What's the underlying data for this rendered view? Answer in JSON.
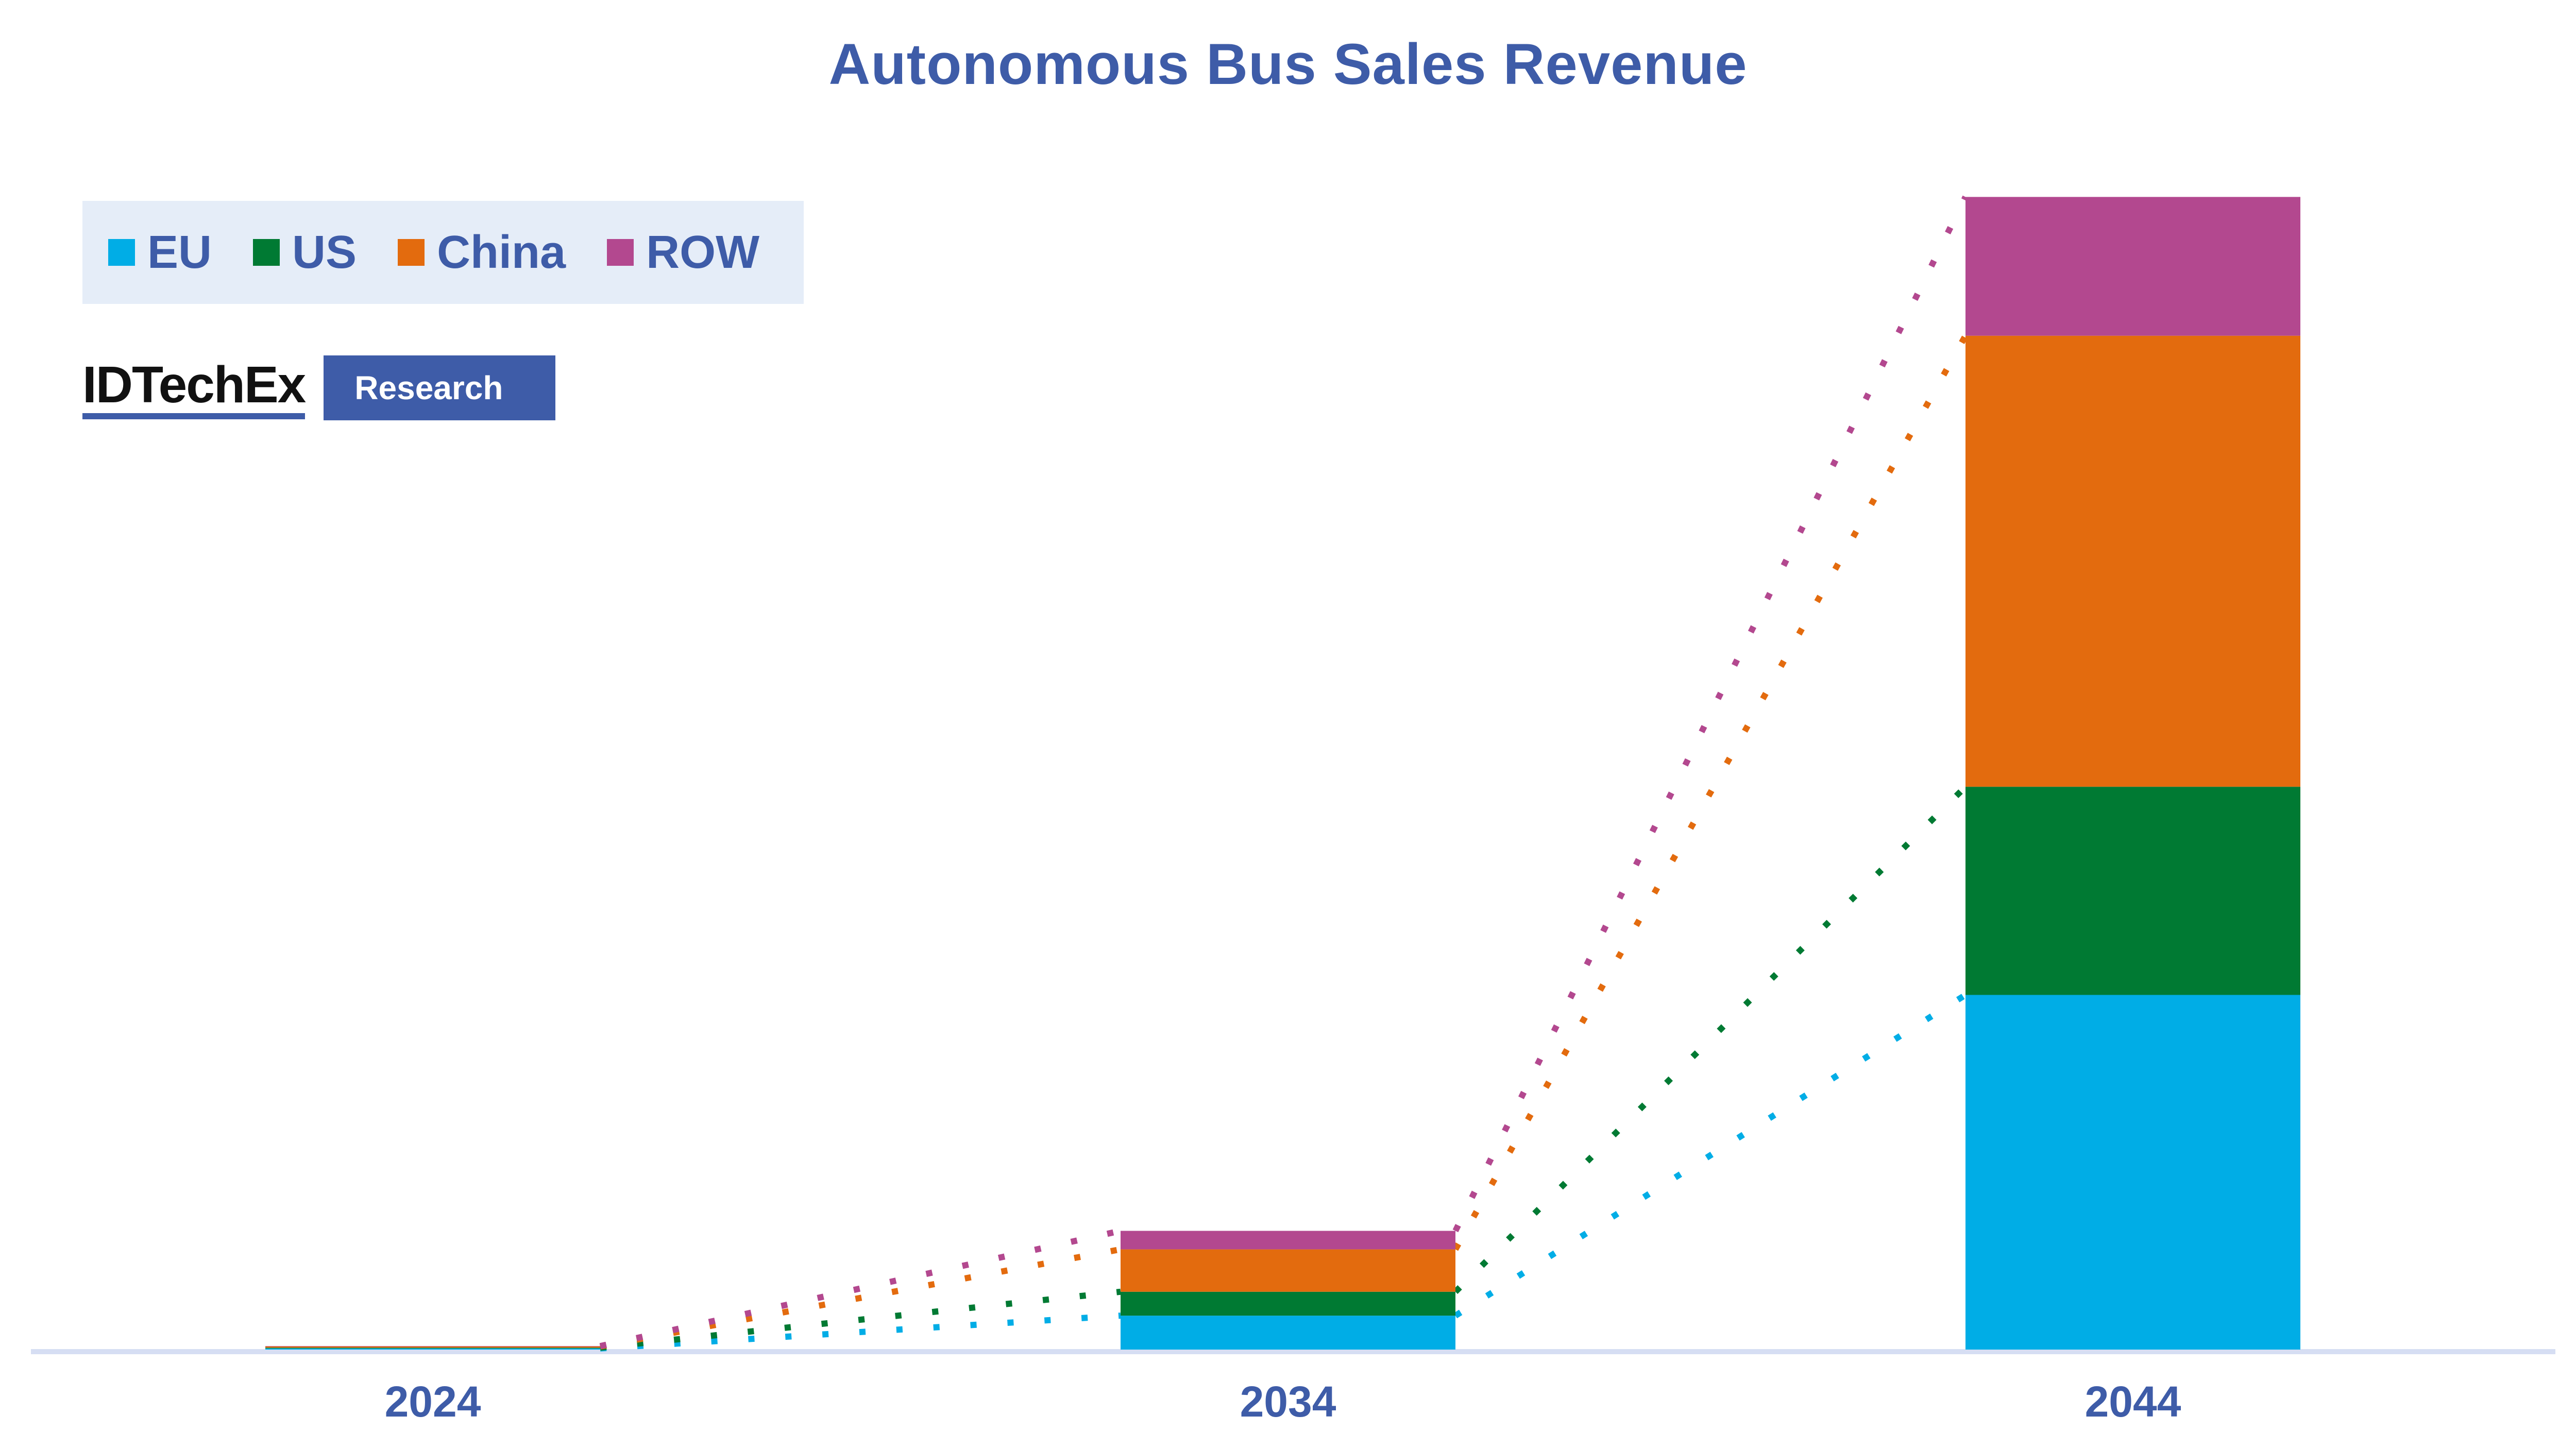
{
  "chart_data": {
    "type": "bar",
    "stacked": true,
    "title": "Autonomous Bus Sales Revenue",
    "xlabel": "",
    "ylabel": "",
    "categories": [
      "2024",
      "2034",
      "2044"
    ],
    "series": [
      {
        "name": "EU",
        "color": "#00ade6",
        "values": [
          0.3,
          8.8,
          92
        ]
      },
      {
        "name": "US",
        "color": "#007a33",
        "values": [
          0.2,
          6.2,
          54
        ]
      },
      {
        "name": "China",
        "color": "#e36b0e",
        "values": [
          0.3,
          11,
          117
        ]
      },
      {
        "name": "ROW",
        "color": "#b3488f",
        "values": [
          0.1,
          4.8,
          36
        ]
      }
    ],
    "ylim": [
      0,
      310
    ],
    "grid": false,
    "legend_position": "top-left",
    "trend_lines": "dotted"
  },
  "branding": {
    "logo_text": "IDTechEx",
    "badge_text": "Research"
  },
  "colors": {
    "title": "#3e5ca8",
    "axis": "#d6def3",
    "legend_bg": "#e5edf8"
  }
}
